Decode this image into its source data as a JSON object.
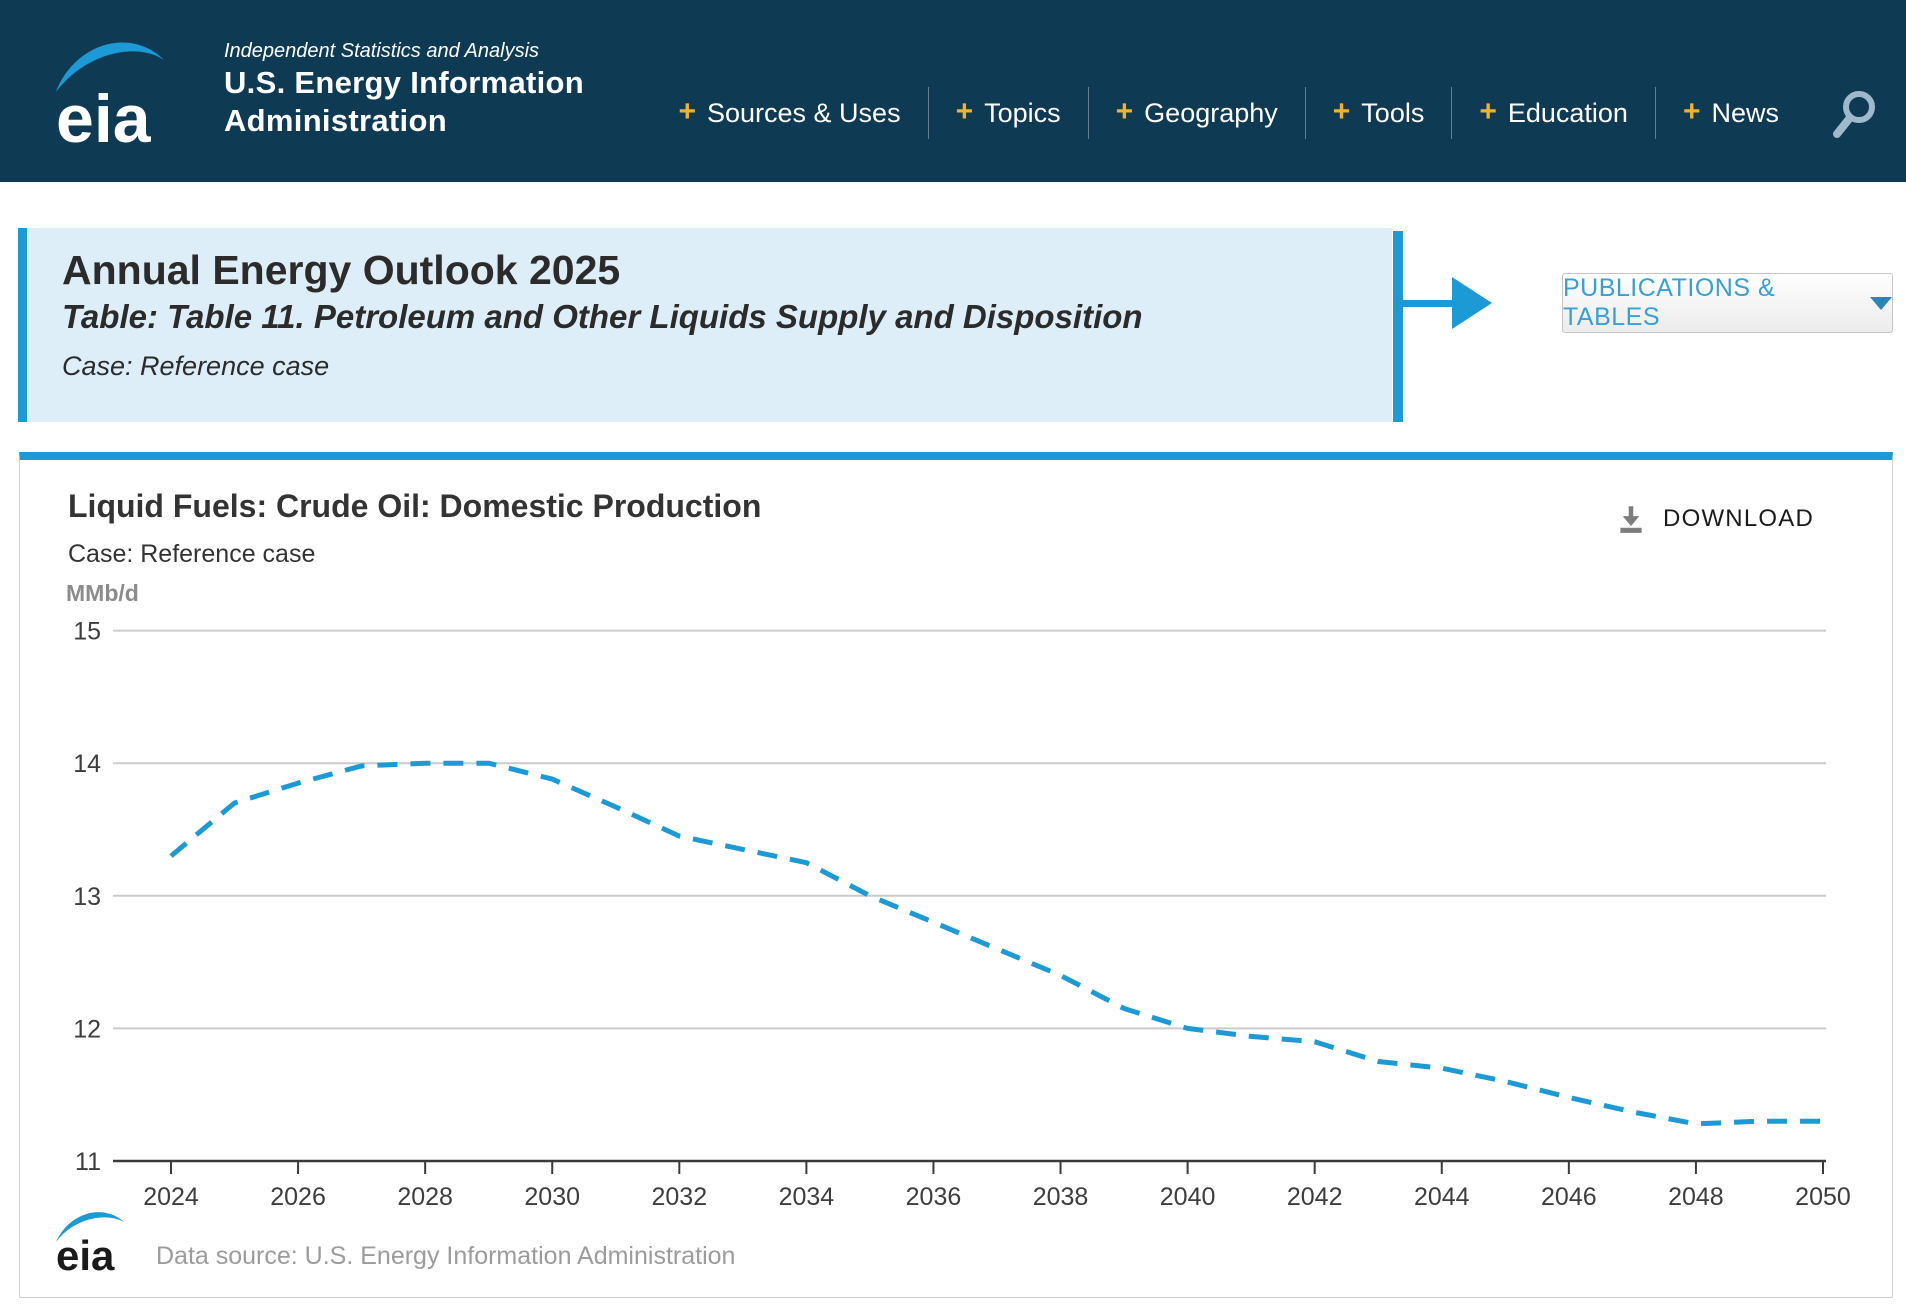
{
  "header": {
    "logo_text": "eia",
    "tagline": "Independent Statistics and Analysis",
    "org_line1": "U.S. Energy Information",
    "org_line2": "Administration",
    "nav": [
      {
        "label": "Sources & Uses"
      },
      {
        "label": "Topics"
      },
      {
        "label": "Geography"
      },
      {
        "label": "Tools"
      },
      {
        "label": "Education"
      },
      {
        "label": "News"
      }
    ],
    "search_icon": "magnifier-icon",
    "background_color": "#0f3a54",
    "plus_icon_color": "#f2b32a"
  },
  "info_box": {
    "title": "Annual Energy Outlook 2025",
    "table_line": "Table: Table 11. Petroleum and Other Liquids Supply and Disposition",
    "case_line": "Case: Reference case",
    "background_color": "#ddeef9",
    "accent_color": "#1c9ad6"
  },
  "publications_button": {
    "label": "PUBLICATIONS & TABLES",
    "caret_icon": "chevron-down-icon",
    "text_color": "#36a0d9"
  },
  "chart_panel": {
    "title": "Liquid Fuels: Crude Oil: Domestic Production",
    "case_line": "Case: Reference case",
    "unit_label": "MMb/d",
    "download_label": "DOWNLOAD",
    "download_icon": "download-tray-icon",
    "footer_logo_text": "eia",
    "data_source": "Data source: U.S. Energy Information Administration"
  },
  "chart_data": {
    "type": "line",
    "title": "Liquid Fuels: Crude Oil: Domestic Production",
    "ylabel": "MMb/d",
    "xlabel": "",
    "line_style": "dashed",
    "line_color": "#1c9ad6",
    "grid": "horizontal",
    "legend": "none",
    "ylim": [
      11,
      15
    ],
    "y_ticks": [
      11,
      12,
      13,
      14,
      15
    ],
    "x_tick_labels": [
      2024,
      2026,
      2028,
      2030,
      2032,
      2034,
      2036,
      2038,
      2040,
      2042,
      2044,
      2046,
      2048,
      2050
    ],
    "x": [
      2024,
      2025,
      2026,
      2027,
      2028,
      2029,
      2030,
      2031,
      2032,
      2033,
      2034,
      2035,
      2036,
      2037,
      2038,
      2039,
      2040,
      2041,
      2042,
      2043,
      2044,
      2045,
      2046,
      2047,
      2048,
      2049,
      2050
    ],
    "values": [
      13.3,
      13.7,
      13.85,
      13.98,
      14.0,
      14.0,
      13.88,
      13.67,
      13.45,
      13.35,
      13.25,
      13.0,
      12.8,
      12.6,
      12.4,
      12.15,
      12.0,
      11.94,
      11.9,
      11.75,
      11.7,
      11.6,
      11.48,
      11.37,
      11.28,
      11.3,
      11.3
    ]
  }
}
